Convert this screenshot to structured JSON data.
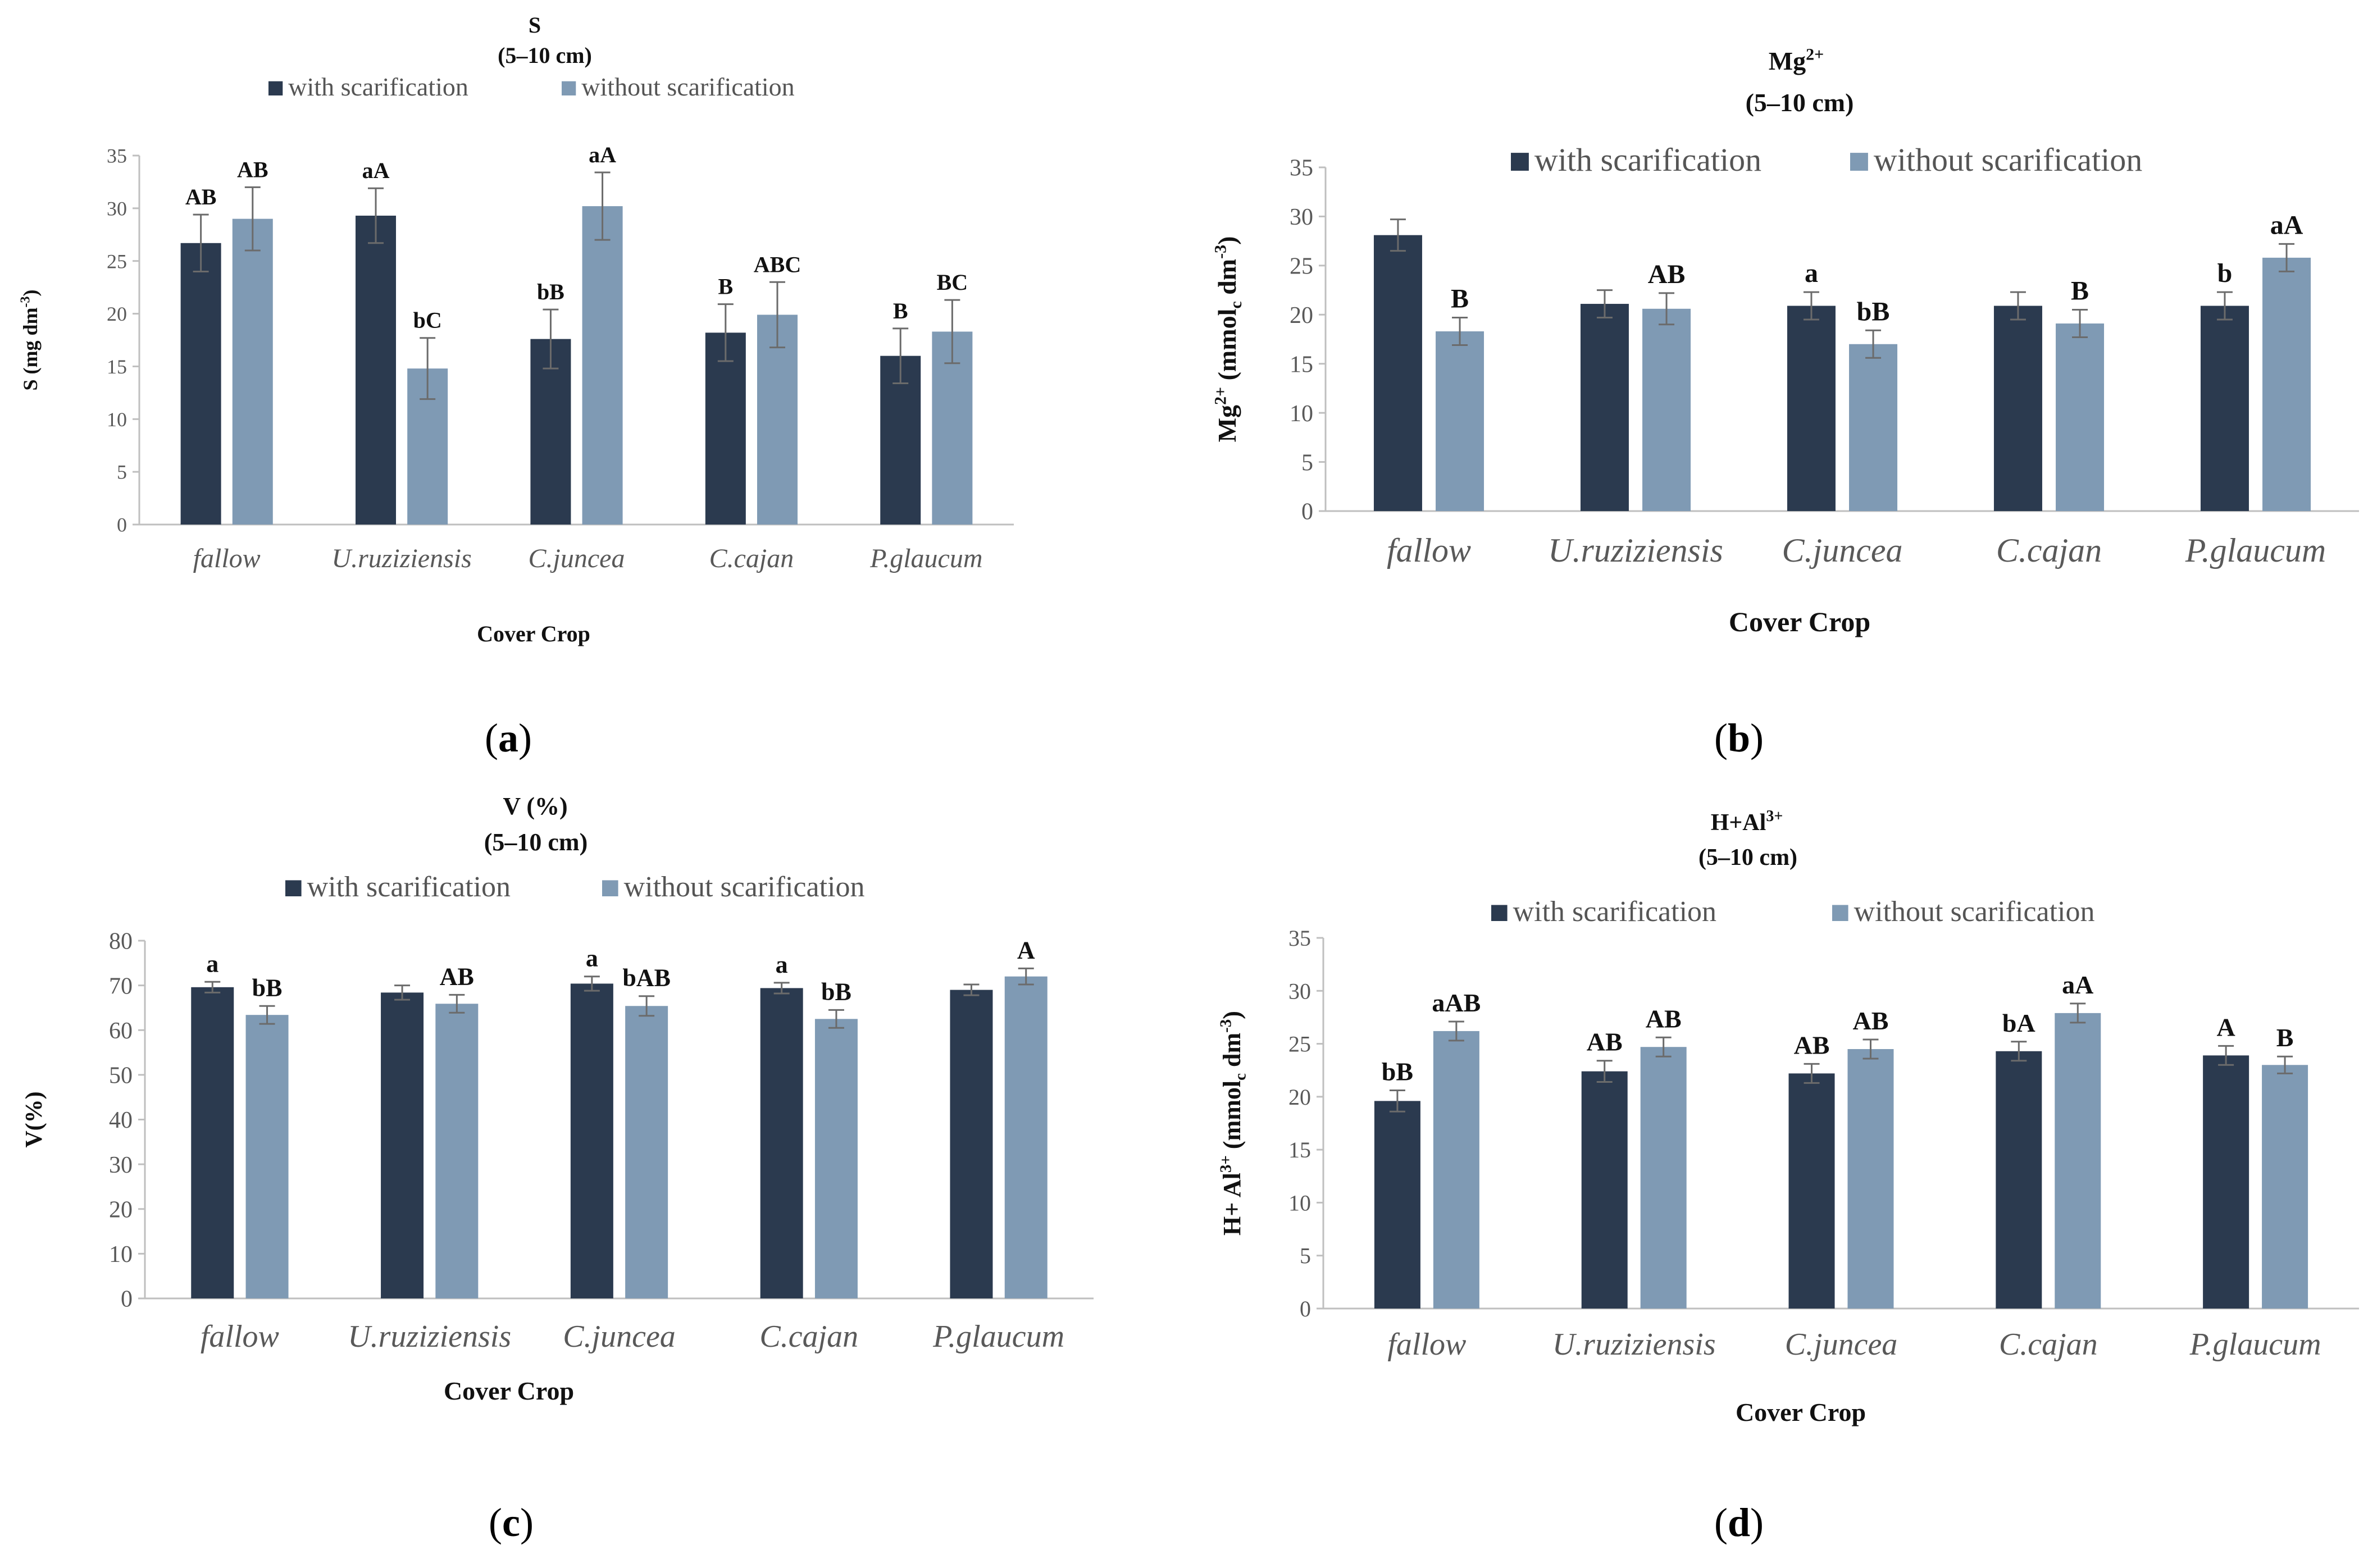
{
  "colors": {
    "with_scarification": "#2b3a4f",
    "without_scarification": "#7f9ab4",
    "axis": "#bfbfbf",
    "error_bar": "#6b6b6b"
  },
  "chart_data": [
    {
      "type": "bar",
      "panel": "(a)",
      "panel_letter": "a",
      "title": "S",
      "subtitle": "(5–10 cm)",
      "xlabel": "Cover Crop",
      "ylabel": [
        "S (mg dm",
        "-3",
        ")"
      ],
      "categories": [
        "fallow",
        "U.ruziziensis",
        "C.juncea",
        "C.cajan",
        "P.glaucum"
      ],
      "ylim": [
        0,
        35
      ],
      "yticks": [
        0,
        5,
        10,
        15,
        20,
        25,
        30,
        35
      ],
      "legend_position": "top",
      "grid": false,
      "series": [
        {
          "name": "with scarification",
          "values": [
            26.7,
            29.3,
            17.6,
            18.2,
            16.0
          ],
          "errors": [
            2.7,
            2.6,
            2.8,
            2.7,
            2.6
          ],
          "letters": [
            "AB",
            "aA",
            "bB",
            "B",
            "B"
          ]
        },
        {
          "name": "without scarification",
          "values": [
            29.0,
            14.8,
            30.2,
            19.9,
            18.3
          ],
          "errors": [
            3.0,
            2.9,
            3.2,
            3.1,
            3.0
          ],
          "letters": [
            "AB",
            "bC",
            "aA",
            "ABC",
            "BC"
          ]
        }
      ]
    },
    {
      "type": "bar",
      "panel": "(b)",
      "panel_letter": "b",
      "title": [
        "Mg",
        "2+"
      ],
      "subtitle": "(5–10 cm)",
      "xlabel": "Cover Crop",
      "ylabel": [
        "Mg",
        "2+",
        " (mmol",
        "c",
        " dm",
        "-3",
        ")"
      ],
      "categories": [
        "fallow",
        "U.ruziziensis",
        "C.juncea",
        "C.cajan",
        "P.glaucum"
      ],
      "ylim": [
        0,
        35
      ],
      "yticks": [
        0,
        5,
        10,
        15,
        20,
        25,
        30,
        35
      ],
      "legend_position": "top",
      "grid": false,
      "series": [
        {
          "name": "with scarification",
          "values": [
            28.1,
            21.1,
            20.9,
            20.9,
            20.9
          ],
          "errors": [
            1.6,
            1.4,
            1.4,
            1.4,
            1.4
          ],
          "letters": [
            "",
            "",
            "a",
            "",
            "b"
          ]
        },
        {
          "name": "without scarification",
          "values": [
            18.3,
            20.6,
            17.0,
            19.1,
            25.8
          ],
          "errors": [
            1.4,
            1.6,
            1.4,
            1.4,
            1.4
          ],
          "letters": [
            "B",
            "AB",
            "bB",
            "B",
            "aA"
          ]
        }
      ]
    },
    {
      "type": "bar",
      "panel": "(c)",
      "panel_letter": "c",
      "title": "V (%)",
      "subtitle": "(5–10 cm)",
      "xlabel": "Cover Crop",
      "ylabel": [
        "V(%)"
      ],
      "categories": [
        "fallow",
        "U.ruziziensis",
        "C.juncea",
        "C.cajan",
        "P.glaucum"
      ],
      "ylim": [
        0,
        80
      ],
      "yticks": [
        0,
        10,
        20,
        30,
        40,
        50,
        60,
        70,
        80
      ],
      "legend_position": "top",
      "grid": false,
      "series": [
        {
          "name": "with scarification",
          "values": [
            69.6,
            68.4,
            70.4,
            69.4,
            69.0
          ],
          "errors": [
            1.2,
            1.6,
            1.6,
            1.2,
            1.2
          ],
          "letters": [
            "a",
            "",
            "a",
            "a",
            ""
          ]
        },
        {
          "name": "without scarification",
          "values": [
            63.4,
            65.9,
            65.4,
            62.5,
            72.0
          ],
          "errors": [
            2.0,
            2.0,
            2.2,
            2.0,
            1.8
          ],
          "letters": [
            "bB",
            "AB",
            "bAB",
            "bB",
            "A"
          ]
        }
      ]
    },
    {
      "type": "bar",
      "panel": "(d)",
      "panel_letter": "d",
      "title": [
        "H+Al",
        "3+"
      ],
      "subtitle": "(5–10 cm)",
      "xlabel": "Cover Crop",
      "ylabel": [
        "H+ Al",
        "3+",
        " (mmol",
        "c",
        " dm",
        "-3",
        ")"
      ],
      "categories": [
        "fallow",
        "U.ruziziensis",
        "C.juncea",
        "C.cajan",
        "P.glaucum"
      ],
      "ylim": [
        0,
        35
      ],
      "yticks": [
        0,
        5,
        10,
        15,
        20,
        25,
        30,
        35
      ],
      "legend_position": "top",
      "grid": false,
      "series": [
        {
          "name": "with scarification",
          "values": [
            19.6,
            22.4,
            22.2,
            24.3,
            23.9
          ],
          "errors": [
            1.0,
            1.0,
            0.9,
            0.9,
            0.9
          ],
          "letters": [
            "bB",
            "AB",
            "AB",
            "bA",
            "A"
          ]
        },
        {
          "name": "without scarification",
          "values": [
            26.2,
            24.7,
            24.5,
            27.9,
            23.0
          ],
          "errors": [
            0.9,
            0.9,
            0.9,
            0.9,
            0.8
          ],
          "letters": [
            "aAB",
            "AB",
            "AB",
            "aA",
            "B"
          ]
        }
      ]
    }
  ]
}
